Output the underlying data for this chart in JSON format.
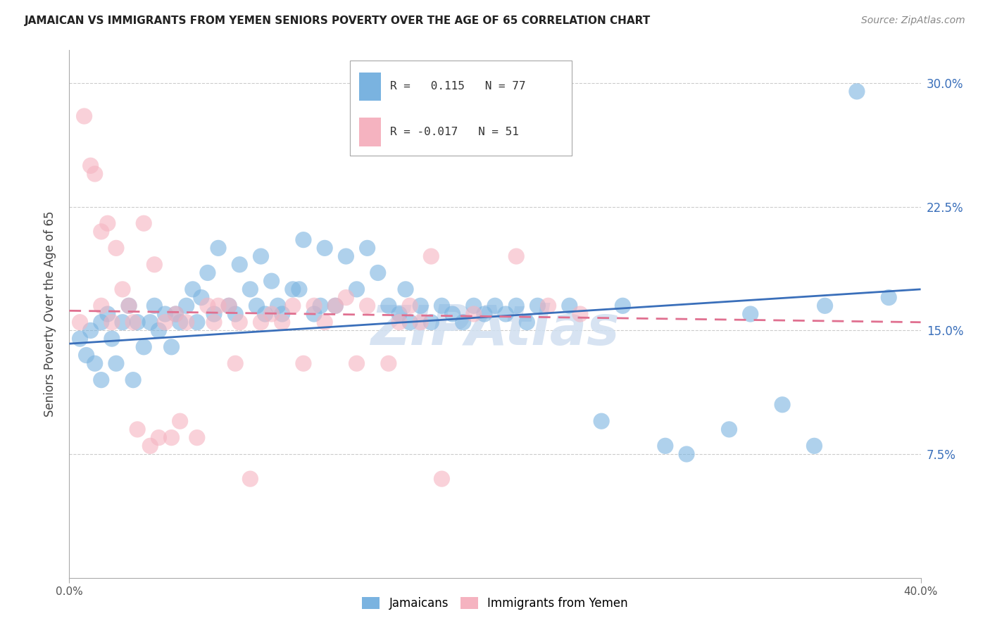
{
  "title": "JAMAICAN VS IMMIGRANTS FROM YEMEN SENIORS POVERTY OVER THE AGE OF 65 CORRELATION CHART",
  "source": "Source: ZipAtlas.com",
  "ylabel": "Seniors Poverty Over the Age of 65",
  "ytick_vals": [
    0.0,
    0.075,
    0.15,
    0.225,
    0.3
  ],
  "ytick_labels": [
    "",
    "7.5%",
    "15.0%",
    "22.5%",
    "30.0%"
  ],
  "xlim": [
    0.0,
    0.4
  ],
  "ylim": [
    0.0,
    0.32
  ],
  "blue_color": "#7ab3e0",
  "pink_color": "#f5b3c0",
  "blue_line_color": "#3a6fba",
  "pink_line_color": "#e07090",
  "watermark_color": "#d0dff0",
  "blue_N": 77,
  "pink_N": 51,
  "blue_R": 0.115,
  "pink_R": -0.017,
  "blue_x": [
    0.005,
    0.008,
    0.01,
    0.012,
    0.015,
    0.015,
    0.018,
    0.02,
    0.022,
    0.025,
    0.028,
    0.03,
    0.032,
    0.035,
    0.038,
    0.04,
    0.042,
    0.045,
    0.048,
    0.05,
    0.052,
    0.055,
    0.058,
    0.06,
    0.062,
    0.065,
    0.068,
    0.07,
    0.075,
    0.078,
    0.08,
    0.085,
    0.088,
    0.09,
    0.092,
    0.095,
    0.098,
    0.1,
    0.105,
    0.108,
    0.11,
    0.115,
    0.118,
    0.12,
    0.125,
    0.13,
    0.135,
    0.14,
    0.145,
    0.15,
    0.155,
    0.158,
    0.16,
    0.165,
    0.17,
    0.175,
    0.18,
    0.185,
    0.19,
    0.195,
    0.2,
    0.205,
    0.21,
    0.215,
    0.22,
    0.235,
    0.25,
    0.26,
    0.28,
    0.29,
    0.31,
    0.32,
    0.335,
    0.35,
    0.355,
    0.37,
    0.385
  ],
  "blue_y": [
    0.145,
    0.135,
    0.15,
    0.13,
    0.155,
    0.12,
    0.16,
    0.145,
    0.13,
    0.155,
    0.165,
    0.12,
    0.155,
    0.14,
    0.155,
    0.165,
    0.15,
    0.16,
    0.14,
    0.16,
    0.155,
    0.165,
    0.175,
    0.155,
    0.17,
    0.185,
    0.16,
    0.2,
    0.165,
    0.16,
    0.19,
    0.175,
    0.165,
    0.195,
    0.16,
    0.18,
    0.165,
    0.16,
    0.175,
    0.175,
    0.205,
    0.16,
    0.165,
    0.2,
    0.165,
    0.195,
    0.175,
    0.2,
    0.185,
    0.165,
    0.16,
    0.175,
    0.155,
    0.165,
    0.155,
    0.165,
    0.16,
    0.155,
    0.165,
    0.16,
    0.165,
    0.16,
    0.165,
    0.155,
    0.165,
    0.165,
    0.095,
    0.165,
    0.08,
    0.075,
    0.09,
    0.16,
    0.105,
    0.08,
    0.165,
    0.295,
    0.17
  ],
  "pink_x": [
    0.005,
    0.007,
    0.01,
    0.012,
    0.015,
    0.015,
    0.018,
    0.02,
    0.022,
    0.025,
    0.028,
    0.03,
    0.032,
    0.035,
    0.038,
    0.04,
    0.042,
    0.045,
    0.048,
    0.05,
    0.052,
    0.055,
    0.06,
    0.065,
    0.068,
    0.07,
    0.075,
    0.078,
    0.08,
    0.085,
    0.09,
    0.095,
    0.1,
    0.105,
    0.11,
    0.115,
    0.12,
    0.125,
    0.13,
    0.135,
    0.14,
    0.15,
    0.155,
    0.16,
    0.165,
    0.17,
    0.175,
    0.19,
    0.21,
    0.225,
    0.24
  ],
  "pink_y": [
    0.155,
    0.28,
    0.25,
    0.245,
    0.165,
    0.21,
    0.215,
    0.155,
    0.2,
    0.175,
    0.165,
    0.155,
    0.09,
    0.215,
    0.08,
    0.19,
    0.085,
    0.155,
    0.085,
    0.16,
    0.095,
    0.155,
    0.085,
    0.165,
    0.155,
    0.165,
    0.165,
    0.13,
    0.155,
    0.06,
    0.155,
    0.16,
    0.155,
    0.165,
    0.13,
    0.165,
    0.155,
    0.165,
    0.17,
    0.13,
    0.165,
    0.13,
    0.155,
    0.165,
    0.155,
    0.195,
    0.06,
    0.16,
    0.195,
    0.165,
    0.16
  ]
}
